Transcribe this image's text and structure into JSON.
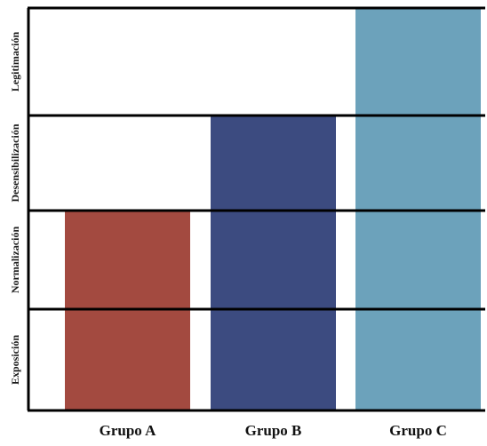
{
  "chart_data": {
    "type": "bar",
    "title": "",
    "xlabel": "",
    "ylabel": "",
    "levels": [
      "Exposición",
      "Normalización",
      "Desensibilización",
      "Legitimación"
    ],
    "categories": [
      "Grupo A",
      "Grupo B",
      "Grupo C"
    ],
    "values": [
      2,
      3,
      4
    ],
    "ylim": [
      0,
      4
    ],
    "grid": true,
    "legend": "none",
    "colors": [
      "#a34a40",
      "#3c4b80",
      "#6ca2bb"
    ]
  }
}
